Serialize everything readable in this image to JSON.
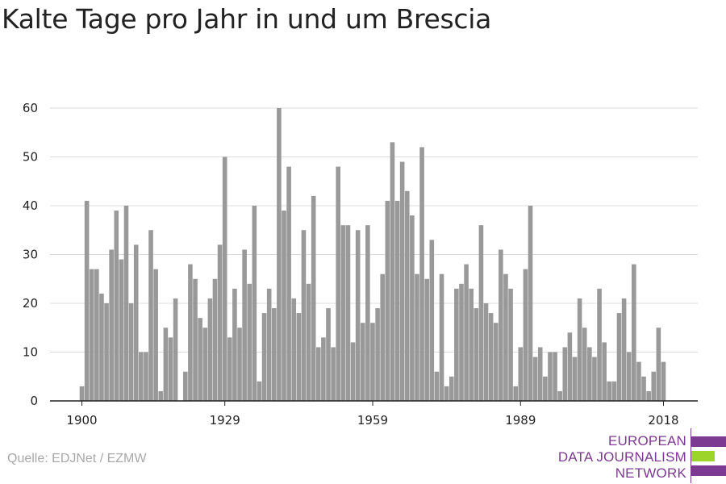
{
  "title": "Kalte Tage pro Jahr in und um Brescia",
  "source": "Quelle: EDJNet / EZMW",
  "logo": {
    "lines": [
      "EUROPEAN",
      "DATA JOURNALISM",
      "NETWORK"
    ],
    "colors": {
      "purple": "#7d3a92",
      "green": "#9dd42a"
    }
  },
  "chart_data": {
    "type": "bar",
    "x_start": 1900,
    "x_end": 2018,
    "ylim": [
      0,
      60
    ],
    "yticks": [
      0,
      10,
      20,
      30,
      40,
      50,
      60
    ],
    "xticks": [
      1900,
      1929,
      1959,
      1989,
      2018
    ],
    "grid": true,
    "bar_color": "#999999",
    "categories": [
      1900,
      1901,
      1902,
      1903,
      1904,
      1905,
      1906,
      1907,
      1908,
      1909,
      1910,
      1911,
      1912,
      1913,
      1914,
      1915,
      1916,
      1917,
      1918,
      1919,
      1920,
      1921,
      1922,
      1923,
      1924,
      1925,
      1926,
      1927,
      1928,
      1929,
      1930,
      1931,
      1932,
      1933,
      1934,
      1935,
      1936,
      1937,
      1938,
      1939,
      1940,
      1941,
      1942,
      1943,
      1944,
      1945,
      1946,
      1947,
      1948,
      1949,
      1950,
      1951,
      1952,
      1953,
      1954,
      1955,
      1956,
      1957,
      1958,
      1959,
      1960,
      1961,
      1962,
      1963,
      1964,
      1965,
      1966,
      1967,
      1968,
      1969,
      1970,
      1971,
      1972,
      1973,
      1974,
      1975,
      1976,
      1977,
      1978,
      1979,
      1980,
      1981,
      1982,
      1983,
      1984,
      1985,
      1986,
      1987,
      1988,
      1989,
      1990,
      1991,
      1992,
      1993,
      1994,
      1995,
      1996,
      1997,
      1998,
      1999,
      2000,
      2001,
      2002,
      2003,
      2004,
      2005,
      2006,
      2007,
      2008,
      2009,
      2010,
      2011,
      2012,
      2013,
      2014,
      2015,
      2016,
      2017,
      2018
    ],
    "values": [
      3,
      41,
      27,
      27,
      22,
      20,
      31,
      39,
      29,
      40,
      20,
      32,
      10,
      10,
      35,
      27,
      2,
      15,
      13,
      21,
      0,
      6,
      28,
      25,
      17,
      15,
      21,
      25,
      32,
      50,
      13,
      23,
      15,
      31,
      24,
      40,
      4,
      18,
      23,
      19,
      60,
      39,
      48,
      21,
      18,
      35,
      24,
      42,
      11,
      13,
      19,
      11,
      48,
      36,
      36,
      12,
      35,
      16,
      36,
      16,
      19,
      26,
      41,
      53,
      41,
      49,
      43,
      38,
      26,
      52,
      25,
      33,
      6,
      26,
      3,
      5,
      23,
      24,
      28,
      23,
      19,
      36,
      20,
      18,
      16,
      31,
      26,
      23,
      3,
      11,
      27,
      40,
      9,
      11,
      5,
      10,
      10,
      2,
      11,
      14,
      9,
      21,
      15,
      11,
      9,
      23,
      12,
      4,
      4,
      18,
      21,
      10,
      28,
      8,
      5,
      2,
      6,
      15,
      8
    ]
  }
}
